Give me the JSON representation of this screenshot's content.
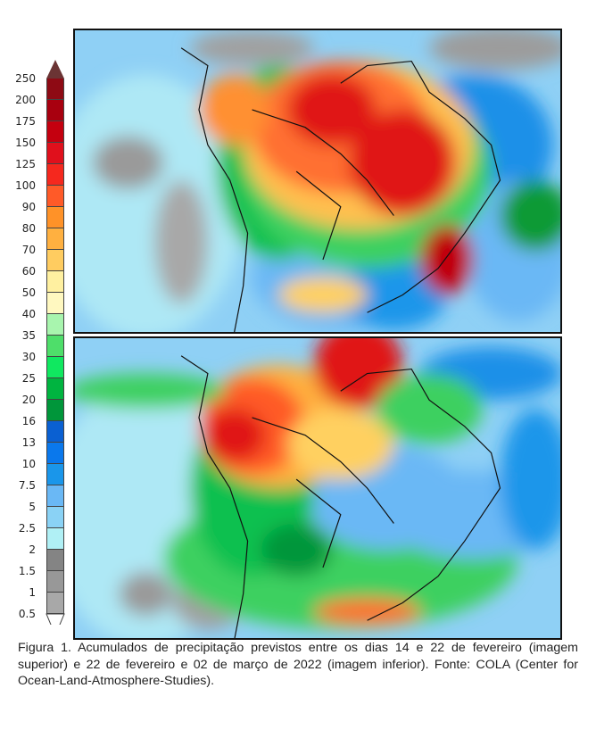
{
  "figure": {
    "caption": "Figura 1. Acumulados de precipitação previstos entre os dias 14 e 22 de fevereiro (imagem superior) e 22 de fevereiro e 02 de março de 2022 (imagem inferior). Fonte: COLA (Center for Ocean-Land-Atmosphere-Studies).",
    "top_map": "precipitation forecast 14–22 February",
    "bottom_map": "precipitation forecast 22 February – 02 March 2022"
  },
  "colorbar": {
    "labels": [
      "250",
      "200",
      "175",
      "150",
      "125",
      "100",
      "90",
      "80",
      "70",
      "60",
      "50",
      "40",
      "35",
      "30",
      "25",
      "20",
      "16",
      "13",
      "10",
      "7.5",
      "5",
      "2.5",
      "2",
      "1.5",
      "1",
      "0.5"
    ],
    "colors": [
      "#8e0a14",
      "#a8000f",
      "#c4000f",
      "#e0101c",
      "#f5281e",
      "#ff5a28",
      "#ff9228",
      "#ffb040",
      "#ffcc60",
      "#fff0a0",
      "#fff8c0",
      "#a8f5ae",
      "#4ede6a",
      "#10e860",
      "#00b440",
      "#00963a",
      "#0a60d2",
      "#0a78ec",
      "#1a96ea",
      "#6ab8f5",
      "#8ad2f5",
      "#b0f0f5",
      "#848484",
      "#989898",
      "#a8a8a8",
      "#bdbdbd"
    ],
    "overflow_color": "#6b3434",
    "underflow_color": "#ffffff"
  }
}
